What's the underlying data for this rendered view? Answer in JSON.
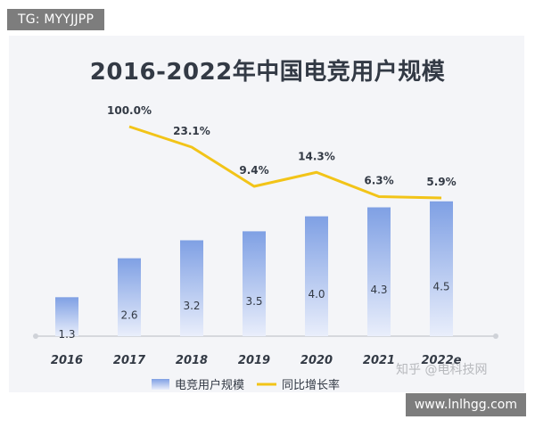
{
  "header_tag": "TG: MYYJJPP",
  "footer_site": "www.lnlhgg.com",
  "watermark": "知乎 @电科技网",
  "colors": {
    "bar_top": "#7fa0e4",
    "bar_bottom": "#e9eefb",
    "line": "#f2c418",
    "text": "#333a45"
  },
  "chart_data": {
    "type": "bar",
    "title": "2016-2022年中国电竞用户规模",
    "categories": [
      "2016",
      "2017",
      "2018",
      "2019",
      "2020",
      "2021",
      "2022e"
    ],
    "series": [
      {
        "name": "电竞用户规模",
        "type": "bar",
        "values": [
          1.3,
          2.6,
          3.2,
          3.5,
          4.0,
          4.3,
          4.5
        ],
        "labels": [
          "1.3",
          "2.6",
          "3.2",
          "3.5",
          "4.0",
          "4.3",
          "4.5"
        ]
      },
      {
        "name": "同比增长率",
        "type": "line",
        "values": [
          null,
          100.0,
          23.1,
          9.4,
          14.3,
          6.3,
          5.9
        ],
        "labels": [
          "",
          "100.0%",
          "23.1%",
          "9.4%",
          "14.3%",
          "6.3%",
          "5.9%"
        ]
      }
    ],
    "ylim": [
      0,
      5.0
    ],
    "legend_position": "bottom-left",
    "grid": false
  }
}
